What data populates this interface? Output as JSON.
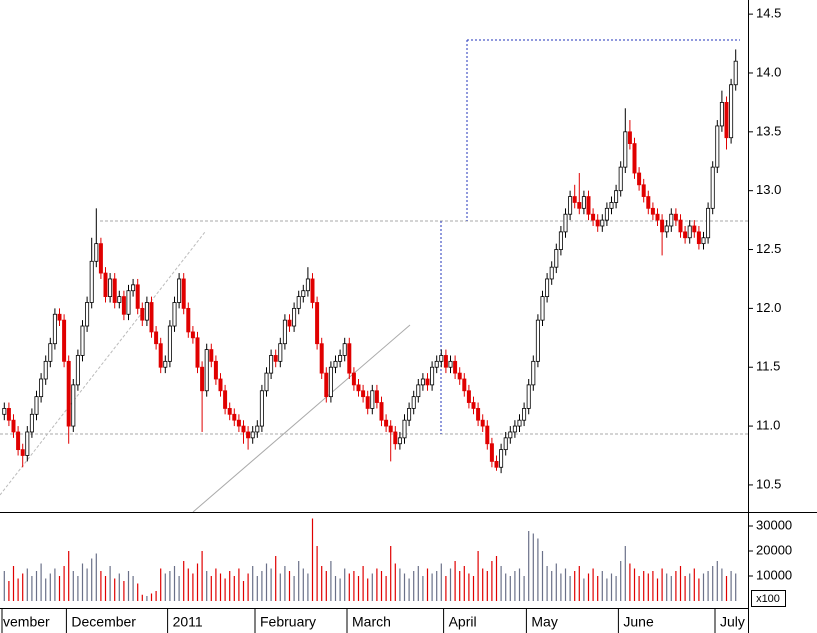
{
  "chart_data": {
    "type": "candlestick",
    "categories": [
      "vember",
      null,
      null,
      null,
      null,
      null,
      null,
      null,
      null,
      null,
      null,
      null,
      null,
      null,
      "December",
      null,
      null,
      null,
      null,
      null,
      null,
      null,
      null,
      null,
      null,
      null,
      null,
      null,
      null,
      null,
      null,
      null,
      null,
      null,
      null,
      null,
      "2011",
      null,
      null,
      null,
      null,
      null,
      null,
      null,
      null,
      null,
      null,
      null,
      null,
      null,
      null,
      null,
      null,
      null,
      null,
      "February",
      null,
      null,
      null,
      null,
      null,
      null,
      null,
      null,
      null,
      null,
      null,
      null,
      null,
      null,
      null,
      null,
      null,
      null,
      null,
      "March",
      null,
      null,
      null,
      null,
      null,
      null,
      null,
      null,
      null,
      null,
      null,
      null,
      null,
      null,
      null,
      null,
      null,
      null,
      null,
      null,
      "April",
      null,
      null,
      null,
      null,
      null,
      null,
      null,
      null,
      null,
      null,
      null,
      null,
      null,
      null,
      null,
      null,
      null,
      "May",
      null,
      null,
      null,
      null,
      null,
      null,
      null,
      null,
      null,
      null,
      null,
      null,
      null,
      null,
      null,
      null,
      null,
      null,
      null,
      "June",
      null,
      null,
      null,
      null,
      null,
      null,
      null,
      null,
      null,
      null,
      null,
      null,
      null,
      null,
      null,
      null,
      null,
      null,
      null,
      null,
      "July",
      null,
      null,
      null,
      null
    ],
    "open": [
      11.1,
      11.15,
      11.05,
      10.95,
      10.8,
      10.75,
      10.95,
      11.1,
      11.25,
      11.4,
      11.55,
      11.7,
      11.95,
      11.9,
      11.55,
      11.0,
      11.35,
      11.6,
      11.85,
      12.05,
      12.4,
      12.55,
      12.3,
      12.1,
      12.25,
      12.05,
      12.1,
      11.95,
      12.15,
      12.2,
      12.0,
      11.9,
      12.05,
      11.8,
      11.7,
      11.5,
      11.55,
      11.85,
      12.05,
      12.25,
      12.0,
      11.8,
      11.75,
      11.5,
      11.3,
      11.65,
      11.55,
      11.4,
      11.3,
      11.15,
      11.1,
      11.05,
      11.0,
      10.95,
      10.9,
      10.95,
      11.0,
      11.3,
      11.45,
      11.6,
      11.55,
      11.7,
      11.9,
      11.85,
      12.0,
      12.1,
      12.15,
      12.25,
      12.05,
      11.7,
      11.45,
      11.25,
      11.5,
      11.55,
      11.6,
      11.7,
      11.45,
      11.35,
      11.3,
      11.25,
      11.15,
      11.3,
      11.2,
      11.05,
      11.0,
      10.95,
      10.85,
      10.9,
      11.05,
      11.15,
      11.25,
      11.35,
      11.4,
      11.35,
      11.5,
      11.55,
      11.6,
      11.5,
      11.55,
      11.45,
      11.4,
      11.3,
      11.2,
      11.15,
      11.05,
      11.0,
      10.85,
      10.7,
      10.65,
      10.8,
      10.9,
      10.95,
      11.0,
      11.05,
      11.15,
      11.35,
      11.55,
      11.9,
      12.1,
      12.25,
      12.35,
      12.5,
      12.65,
      12.8,
      12.95,
      12.9,
      12.85,
      12.95,
      12.8,
      12.75,
      12.7,
      12.75,
      12.85,
      12.9,
      13.0,
      13.2,
      13.5,
      13.4,
      13.15,
      13.05,
      12.95,
      12.85,
      12.8,
      12.75,
      12.65,
      12.7,
      12.8,
      12.75,
      12.65,
      12.6,
      12.7,
      12.65,
      12.55,
      12.6,
      12.85,
      13.2,
      13.55,
      13.75,
      13.45,
      13.9
    ],
    "high": [
      11.2,
      11.2,
      11.1,
      11.0,
      10.85,
      11.0,
      11.15,
      11.3,
      11.45,
      11.6,
      11.75,
      12.0,
      12.0,
      11.95,
      11.6,
      11.4,
      11.65,
      11.9,
      12.1,
      12.6,
      12.85,
      12.6,
      12.35,
      12.3,
      12.3,
      12.15,
      12.15,
      12.2,
      12.25,
      12.25,
      12.05,
      12.1,
      12.1,
      11.85,
      11.75,
      11.6,
      11.9,
      12.1,
      12.3,
      12.3,
      12.05,
      11.85,
      11.8,
      11.55,
      11.7,
      11.7,
      11.6,
      11.45,
      11.35,
      11.2,
      11.15,
      11.1,
      11.05,
      11.0,
      11.0,
      11.05,
      11.35,
      11.5,
      11.65,
      11.65,
      11.75,
      11.95,
      11.95,
      12.05,
      12.15,
      12.2,
      12.35,
      12.3,
      12.1,
      11.75,
      11.5,
      11.55,
      11.6,
      11.65,
      11.75,
      11.75,
      11.5,
      11.4,
      11.35,
      11.3,
      11.35,
      11.35,
      11.25,
      11.1,
      11.05,
      11.0,
      10.95,
      11.1,
      11.2,
      11.3,
      11.4,
      11.45,
      11.45,
      11.55,
      11.6,
      11.65,
      11.65,
      11.6,
      11.6,
      11.5,
      11.45,
      11.35,
      11.25,
      11.2,
      11.1,
      11.05,
      10.9,
      10.75,
      10.85,
      10.95,
      11.0,
      11.05,
      11.1,
      11.2,
      11.4,
      11.6,
      11.95,
      12.15,
      12.3,
      12.4,
      12.55,
      12.7,
      12.85,
      13.0,
      13.05,
      13.15,
      13.0,
      13.0,
      12.85,
      12.8,
      12.8,
      12.9,
      12.95,
      13.05,
      13.25,
      13.7,
      13.6,
      13.45,
      13.2,
      13.1,
      13.0,
      12.9,
      12.85,
      12.8,
      12.75,
      12.85,
      12.85,
      12.8,
      12.7,
      12.75,
      12.75,
      12.7,
      12.65,
      12.9,
      13.25,
      13.6,
      13.85,
      13.8,
      13.95,
      14.2
    ],
    "low": [
      11.05,
      11.0,
      10.9,
      10.75,
      10.65,
      10.7,
      10.9,
      11.05,
      11.2,
      11.35,
      11.5,
      11.65,
      11.85,
      11.5,
      10.85,
      10.95,
      11.3,
      11.55,
      11.8,
      12.0,
      12.35,
      12.25,
      12.05,
      12.05,
      12.0,
      12.0,
      11.9,
      11.9,
      12.1,
      11.95,
      11.85,
      11.85,
      11.75,
      11.65,
      11.45,
      11.45,
      11.5,
      11.8,
      12.0,
      11.95,
      11.75,
      11.7,
      11.45,
      10.95,
      11.25,
      11.5,
      11.35,
      11.25,
      11.1,
      11.05,
      11.0,
      10.95,
      10.85,
      10.8,
      10.85,
      10.9,
      10.95,
      11.25,
      11.4,
      11.5,
      11.5,
      11.65,
      11.8,
      11.8,
      11.95,
      12.05,
      12.1,
      12.0,
      11.65,
      11.4,
      11.2,
      11.2,
      11.45,
      11.5,
      11.55,
      11.4,
      11.3,
      11.25,
      11.2,
      11.1,
      11.1,
      11.15,
      11.0,
      10.95,
      10.7,
      10.8,
      10.8,
      10.85,
      11.0,
      11.1,
      11.2,
      11.3,
      11.3,
      11.3,
      11.45,
      11.5,
      11.45,
      11.45,
      11.4,
      11.35,
      11.25,
      11.15,
      11.1,
      11.0,
      10.95,
      10.8,
      10.65,
      10.62,
      10.6,
      10.75,
      10.85,
      10.9,
      10.95,
      11.0,
      11.1,
      11.3,
      11.5,
      11.85,
      12.05,
      12.2,
      12.3,
      12.45,
      12.6,
      12.75,
      12.85,
      12.8,
      12.8,
      12.75,
      12.7,
      12.65,
      12.65,
      12.7,
      12.8,
      12.85,
      12.95,
      13.15,
      13.35,
      13.1,
      13.0,
      12.9,
      12.8,
      12.75,
      12.7,
      12.45,
      12.6,
      12.65,
      12.7,
      12.6,
      12.55,
      12.55,
      12.6,
      12.5,
      12.5,
      12.55,
      12.8,
      13.15,
      13.5,
      13.35,
      13.4,
      13.85
    ],
    "close": [
      11.15,
      11.05,
      10.95,
      10.8,
      10.75,
      10.95,
      11.1,
      11.25,
      11.4,
      11.55,
      11.7,
      11.95,
      11.9,
      11.55,
      11.0,
      11.35,
      11.6,
      11.85,
      12.05,
      12.4,
      12.55,
      12.3,
      12.1,
      12.25,
      12.05,
      12.1,
      11.95,
      12.15,
      12.2,
      12.0,
      11.9,
      12.05,
      11.8,
      11.7,
      11.5,
      11.55,
      11.85,
      12.05,
      12.25,
      12.0,
      11.8,
      11.75,
      11.5,
      11.3,
      11.65,
      11.55,
      11.4,
      11.3,
      11.15,
      11.1,
      11.05,
      11.0,
      10.95,
      10.9,
      10.95,
      11.0,
      11.3,
      11.45,
      11.6,
      11.55,
      11.7,
      11.9,
      11.85,
      12.0,
      12.1,
      12.15,
      12.25,
      12.05,
      11.7,
      11.45,
      11.25,
      11.5,
      11.55,
      11.6,
      11.7,
      11.45,
      11.35,
      11.3,
      11.25,
      11.15,
      11.3,
      11.2,
      11.05,
      11.0,
      10.95,
      10.85,
      10.9,
      11.05,
      11.15,
      11.25,
      11.35,
      11.4,
      11.35,
      11.5,
      11.55,
      11.6,
      11.5,
      11.55,
      11.45,
      11.4,
      11.3,
      11.2,
      11.15,
      11.05,
      11.0,
      10.85,
      10.7,
      10.65,
      10.8,
      10.9,
      10.95,
      11.0,
      11.05,
      11.15,
      11.35,
      11.55,
      11.9,
      12.1,
      12.25,
      12.35,
      12.5,
      12.65,
      12.8,
      12.95,
      12.9,
      12.85,
      12.95,
      12.8,
      12.75,
      12.7,
      12.75,
      12.85,
      12.9,
      13.0,
      13.2,
      13.5,
      13.4,
      13.15,
      13.05,
      12.95,
      12.85,
      12.8,
      12.75,
      12.65,
      12.7,
      12.8,
      12.75,
      12.65,
      12.6,
      12.7,
      12.65,
      12.55,
      12.6,
      12.85,
      13.2,
      13.55,
      13.75,
      13.45,
      13.9,
      14.1
    ],
    "volume": [
      12000,
      8000,
      14000,
      9000,
      11000,
      13000,
      10000,
      12000,
      15000,
      9000,
      11000,
      13000,
      10000,
      14000,
      20000,
      12000,
      10000,
      15000,
      13000,
      17000,
      19000,
      12000,
      10000,
      14000,
      9000,
      11000,
      8000,
      12000,
      10000,
      7000,
      2500,
      2000,
      3000,
      4000,
      13000,
      11000,
      12000,
      14000,
      10000,
      16000,
      13000,
      11000,
      15000,
      20000,
      12000,
      10000,
      13000,
      11000,
      9000,
      12000,
      10000,
      13000,
      8000,
      11000,
      14000,
      10000,
      12000,
      15000,
      13000,
      18000,
      11000,
      14000,
      12000,
      10000,
      16000,
      13000,
      11000,
      33000,
      22000,
      14000,
      12000,
      16000,
      10000,
      9000,
      13000,
      11000,
      12000,
      10000,
      14000,
      9000,
      11000,
      13000,
      12000,
      10000,
      22000,
      15000,
      13000,
      11000,
      9000,
      12000,
      14000,
      10000,
      13000,
      11000,
      12000,
      15000,
      10000,
      13000,
      16000,
      12000,
      14000,
      11000,
      10000,
      20000,
      13000,
      12000,
      16000,
      18000,
      14000,
      11000,
      10000,
      12000,
      13000,
      10000,
      28000,
      27000,
      25000,
      20000,
      14000,
      12000,
      15000,
      11000,
      13000,
      10000,
      12000,
      14000,
      9000,
      11000,
      13000,
      10000,
      12000,
      9000,
      11000,
      10000,
      16000,
      22000,
      15000,
      13000,
      10000,
      12000,
      11000,
      12000,
      9000,
      13000,
      11000,
      10000,
      12000,
      14000,
      10000,
      11000,
      13000,
      9000,
      11000,
      12000,
      14000,
      16000,
      13000,
      10000,
      12000,
      11000
    ],
    "ylim": [
      10.27,
      14.62
    ],
    "yticks": [
      10.5,
      {
        "value": 11,
        "label": "11.0"
      },
      11.5,
      {
        "value": 12,
        "label": "12.0"
      },
      12.5,
      {
        "value": 13,
        "label": "13.0"
      },
      13.5,
      {
        "value": 14,
        "label": "14.0"
      },
      14.5
    ],
    "volume_ylim": [
      -2800,
      35200
    ],
    "volume_yticks": [
      10000,
      20000,
      30000
    ],
    "volume_unit": "x100",
    "up_color": "#ffffff",
    "down_color": "#e00000",
    "volume_color": "#6a7088"
  }
}
